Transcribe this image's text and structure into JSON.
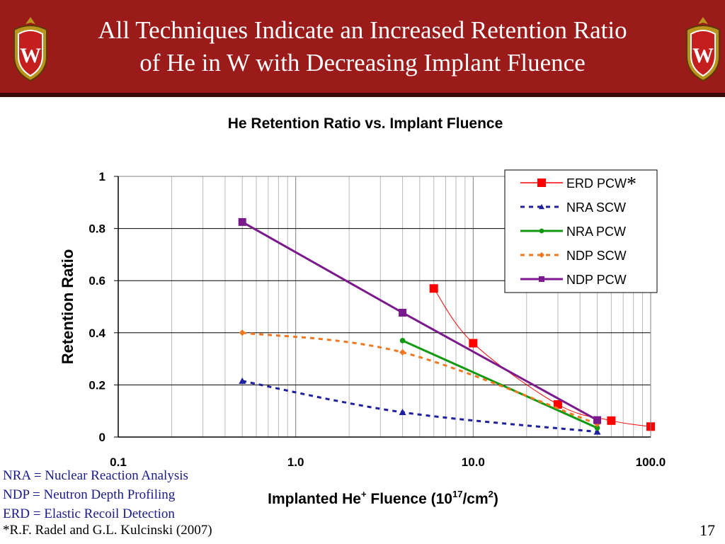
{
  "slide": {
    "title_line1": "All Techniques Indicate an Increased Retention Ratio",
    "title_line2": "of He in W with Decreasing Implant Fluence",
    "page_number": "17",
    "footnotes": [
      "NRA = Nuclear Reaction Analysis",
      "NDP = Neutron Depth Profiling",
      "ERD = Elastic Recoil Detection"
    ],
    "citation": "*R.F. Radel and G.L. Kulcinski (2007)",
    "crest_letter": "W",
    "colors": {
      "header": "#9b1b1b",
      "crest": "#b8941f"
    }
  },
  "chart_data": {
    "type": "line",
    "title": "He Retention Ratio vs. Implant Fluence",
    "ylabel": "Retention Ratio",
    "xlabel_parts": [
      "Implanted He",
      "+",
      " Fluence (10",
      "17",
      "/cm",
      "2",
      ")"
    ],
    "xscale": "log",
    "xlim": [
      0.1,
      100
    ],
    "ylim": [
      0,
      1
    ],
    "xticks": [
      0.1,
      1,
      10,
      100
    ],
    "xtick_labels": [
      "0.1",
      "1.0",
      "10.0",
      "100.0"
    ],
    "yticks": [
      0,
      0.2,
      0.4,
      0.6,
      0.8,
      1
    ],
    "ytick_labels": [
      "0",
      "0.2",
      "0.4",
      "0.6",
      "0.8",
      "1"
    ],
    "grid": true,
    "legend_position": "top-right",
    "series": [
      {
        "name": "ERD PCW",
        "note": "*",
        "color": "#ff0000",
        "marker": "square",
        "dash": "solid",
        "smooth": true,
        "line_width": 1,
        "x": [
          6,
          10,
          30,
          60,
          100
        ],
        "y": [
          0.57,
          0.36,
          0.125,
          0.063,
          0.04
        ]
      },
      {
        "name": "NRA SCW",
        "color": "#1f1fa0",
        "marker": "triangle",
        "dash": "dashed",
        "smooth": true,
        "line_width": 3,
        "x": [
          0.5,
          4,
          50
        ],
        "y": [
          0.215,
          0.095,
          0.02
        ]
      },
      {
        "name": "NRA PCW",
        "color": "#119911",
        "marker": "circle",
        "dash": "solid",
        "smooth": false,
        "line_width": 3,
        "x": [
          4,
          50
        ],
        "y": [
          0.37,
          0.035
        ]
      },
      {
        "name": "NDP SCW",
        "color": "#f07820",
        "marker": "diamond",
        "dash": "dashed",
        "smooth": true,
        "line_width": 3,
        "x": [
          0.5,
          4,
          50
        ],
        "y": [
          0.4,
          0.325,
          0.05
        ]
      },
      {
        "name": "NDP PCW",
        "color": "#7b1a8c",
        "marker": "square",
        "dash": "solid",
        "smooth": false,
        "line_width": 3,
        "x": [
          0.5,
          4,
          50
        ],
        "y": [
          0.825,
          0.477,
          0.065
        ]
      }
    ]
  }
}
